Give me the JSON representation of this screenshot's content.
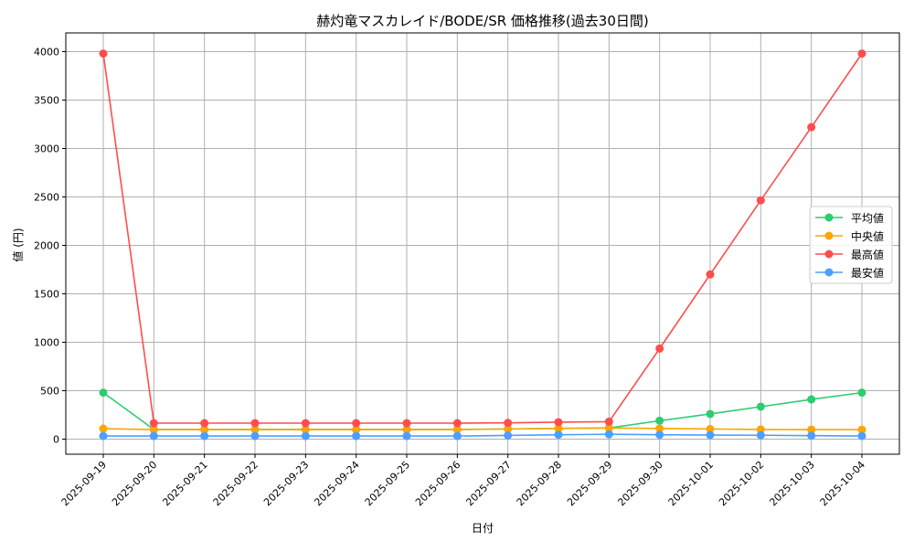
{
  "chart_data": {
    "type": "line",
    "title": "赫灼竜マスカレイド/BODE/SR 価格推移(過去30日間)",
    "xlabel": "日付",
    "ylabel": "値 (円)",
    "ylim": [
      -150,
      4180
    ],
    "yticks": [
      0,
      500,
      1000,
      1500,
      2000,
      2500,
      3000,
      3500,
      4000
    ],
    "grid": true,
    "legend_position": "center right",
    "x": [
      "2025-09-19",
      "2025-09-20",
      "2025-09-21",
      "2025-09-22",
      "2025-09-23",
      "2025-09-24",
      "2025-09-25",
      "2025-09-26",
      "2025-09-27",
      "2025-09-28",
      "2025-09-29",
      "2025-09-30",
      "2025-10-01",
      "2025-10-02",
      "2025-10-03",
      "2025-10-04"
    ],
    "series": [
      {
        "name": "平均値",
        "color": "#2ecc71",
        "values": [
          480,
          100,
          100,
          100,
          100,
          100,
          100,
          100,
          105,
          110,
          115,
          190,
          260,
          335,
          410,
          480
        ]
      },
      {
        "name": "中央値",
        "color": "#ffa500",
        "values": [
          108,
          98,
          98,
          98,
          98,
          98,
          98,
          98,
          105,
          110,
          115,
          110,
          105,
          100,
          98,
          98
        ]
      },
      {
        "name": "最高値",
        "color": "#ff4d4d",
        "values": [
          3980,
          165,
          165,
          165,
          165,
          165,
          165,
          165,
          168,
          175,
          180,
          935,
          1700,
          2465,
          3220,
          3980
        ]
      },
      {
        "name": "最安値",
        "color": "#4d9fff",
        "values": [
          32,
          32,
          32,
          32,
          32,
          32,
          32,
          32,
          38,
          45,
          50,
          45,
          42,
          40,
          36,
          32
        ]
      }
    ]
  }
}
